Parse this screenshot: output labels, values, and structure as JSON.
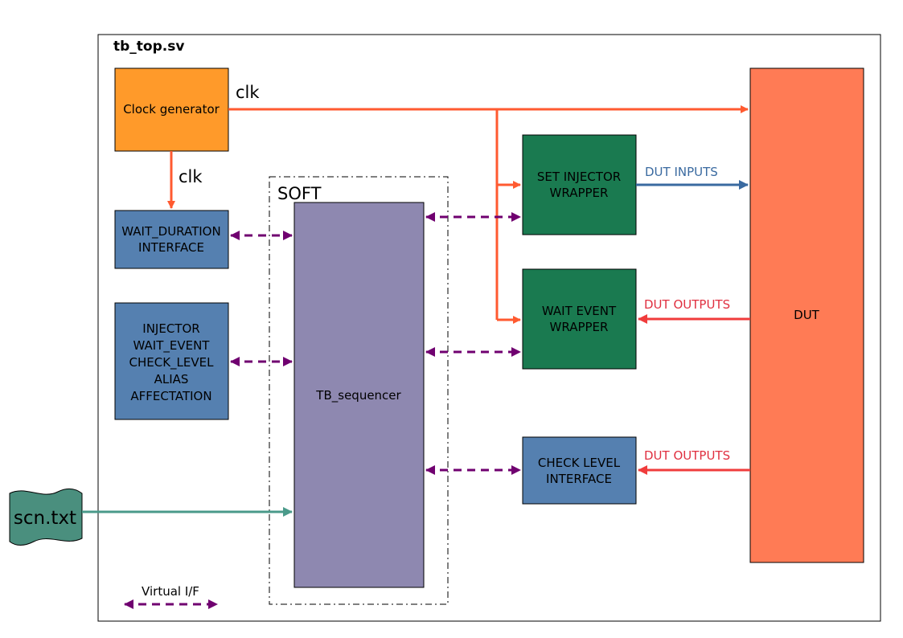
{
  "title": "tb_top.sv",
  "colors": {
    "clock_line": "#ff5a30",
    "virtual_if": "#700070",
    "dut_input_line": "#3a6aa0",
    "dut_output_line": "#f03c3c",
    "scn_line": "#4a9a8a",
    "clock_box": "#ff9a2a",
    "blue_box": "#5580b0",
    "green_box": "#1a7a50",
    "purple_box": "#8e88b0",
    "dut_box": "#ff7b55",
    "scn_file": "#4a8f7e"
  },
  "blocks": {
    "clock_generator": "Clock generator",
    "wait_duration": [
      "WAIT_DURATION",
      "INTERFACE"
    ],
    "injector_group": [
      "INJECTOR",
      "WAIT_EVENT",
      "CHECK_LEVEL",
      "ALIAS",
      "AFFECTATION"
    ],
    "soft": "SOFT",
    "tb_sequencer": "TB_sequencer",
    "set_injector": [
      "SET INJECTOR",
      "WRAPPER"
    ],
    "wait_event": [
      "WAIT EVENT",
      "WRAPPER"
    ],
    "check_level": [
      "CHECK LEVEL",
      "INTERFACE"
    ],
    "dut": "DUT",
    "scn_file": "scn.txt"
  },
  "signals": {
    "clk_top": "clk",
    "clk_down": "clk",
    "dut_inputs": "DUT INPUTS",
    "dut_outputs_1": "DUT OUTPUTS",
    "dut_outputs_2": "DUT OUTPUTS"
  },
  "legend": {
    "virtual_if": "Virtual I/F"
  }
}
